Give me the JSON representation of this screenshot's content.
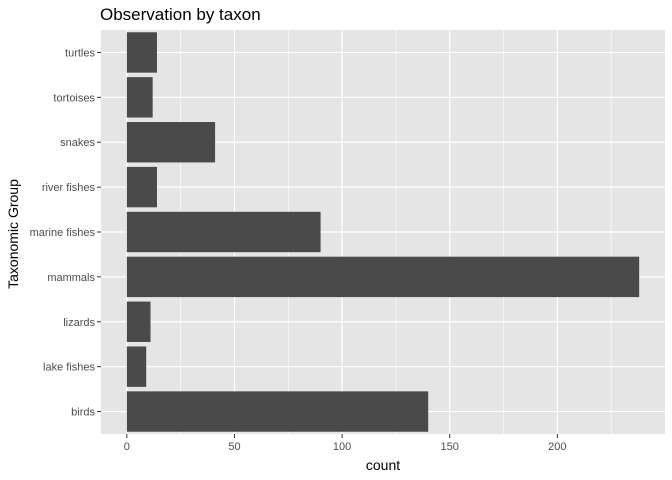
{
  "chart_data": {
    "type": "bar",
    "orientation": "horizontal",
    "title": "Observation by taxon",
    "xlabel": "count",
    "ylabel": "Taxonomic Group",
    "categories": [
      "birds",
      "lake fishes",
      "lizards",
      "mammals",
      "marine fishes",
      "river fishes",
      "snakes",
      "tortoises",
      "turtles"
    ],
    "values": [
      140,
      9,
      11,
      238,
      90,
      14,
      41,
      12,
      14
    ],
    "xlim": [
      -12,
      250
    ],
    "xticks": [
      0,
      50,
      100,
      150,
      200
    ],
    "grid": true,
    "legend": "none",
    "colors": {
      "bar": "#4a4a4a",
      "panel": "#e5e5e5",
      "grid": "#ffffff"
    }
  }
}
